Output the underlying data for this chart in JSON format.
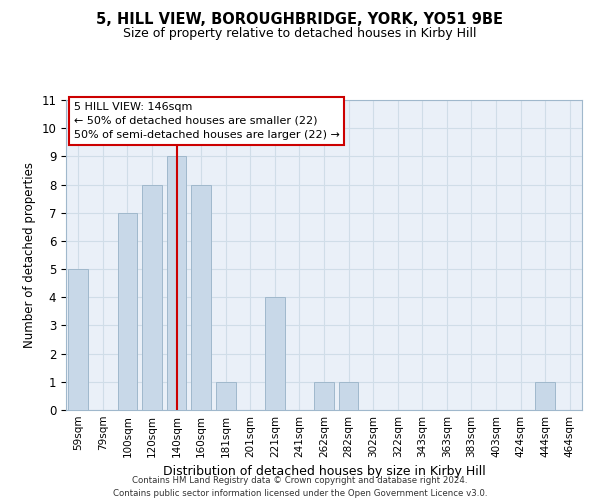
{
  "title": "5, HILL VIEW, BOROUGHBRIDGE, YORK, YO51 9BE",
  "subtitle": "Size of property relative to detached houses in Kirby Hill",
  "xlabel": "Distribution of detached houses by size in Kirby Hill",
  "ylabel": "Number of detached properties",
  "footer_line1": "Contains HM Land Registry data © Crown copyright and database right 2024.",
  "footer_line2": "Contains public sector information licensed under the Open Government Licence v3.0.",
  "bins": [
    "59sqm",
    "79sqm",
    "100sqm",
    "120sqm",
    "140sqm",
    "160sqm",
    "181sqm",
    "201sqm",
    "221sqm",
    "241sqm",
    "262sqm",
    "282sqm",
    "302sqm",
    "322sqm",
    "343sqm",
    "363sqm",
    "383sqm",
    "403sqm",
    "424sqm",
    "444sqm",
    "464sqm"
  ],
  "counts": [
    5,
    0,
    7,
    8,
    9,
    8,
    1,
    0,
    4,
    0,
    1,
    1,
    0,
    0,
    0,
    0,
    0,
    0,
    0,
    1,
    0
  ],
  "bar_color": "#c8d8e8",
  "bar_edge_color": "#a0b8cc",
  "vline_x_index": 4,
  "vline_color": "#cc0000",
  "annotation_title": "5 HILL VIEW: 146sqm",
  "annotation_line1": "← 50% of detached houses are smaller (22)",
  "annotation_line2": "50% of semi-detached houses are larger (22) →",
  "annotation_box_color": "#ffffff",
  "annotation_box_edge_color": "#cc0000",
  "ylim": [
    0,
    11
  ],
  "yticks": [
    0,
    1,
    2,
    3,
    4,
    5,
    6,
    7,
    8,
    9,
    10,
    11
  ],
  "grid_color": "#d0dde8",
  "bg_color": "#eaf0f8"
}
